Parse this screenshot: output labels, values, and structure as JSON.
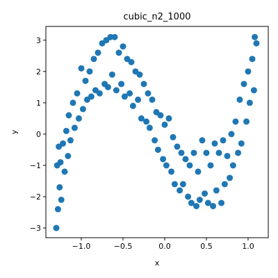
{
  "chart_data": {
    "type": "scatter",
    "title": "cubic_n2_1000",
    "xlabel": "x",
    "ylabel": "y",
    "color": "#1f77b4",
    "x": [
      -1.3,
      -1.29,
      -1.28,
      -1.27,
      -1.26,
      -1.25,
      -1.24,
      -1.22,
      -1.2,
      -1.18,
      -1.16,
      -1.15,
      -1.13,
      -1.1,
      -1.08,
      -1.05,
      -1.03,
      -1.0,
      -0.98,
      -0.95,
      -0.93,
      -0.9,
      -0.88,
      -0.85,
      -0.83,
      -0.8,
      -0.78,
      -0.75,
      -0.72,
      -0.7,
      -0.68,
      -0.65,
      -0.63,
      -0.6,
      -0.58,
      -0.55,
      -0.52,
      -0.5,
      -0.48,
      -0.45,
      -0.42,
      -0.4,
      -0.38,
      -0.35,
      -0.32,
      -0.3,
      -0.28,
      -0.25,
      -0.22,
      -0.2,
      -0.18,
      -0.15,
      -0.12,
      -0.1,
      -0.08,
      -0.05,
      -0.02,
      0.0,
      0.02,
      0.05,
      0.08,
      0.1,
      0.12,
      0.15,
      0.18,
      0.2,
      0.22,
      0.25,
      0.28,
      0.3,
      0.32,
      0.35,
      0.38,
      0.4,
      0.42,
      0.45,
      0.48,
      0.5,
      0.52,
      0.55,
      0.58,
      0.6,
      0.62,
      0.65,
      0.68,
      0.7,
      0.72,
      0.75,
      0.78,
      0.8,
      0.82,
      0.85,
      0.88,
      0.9,
      0.92,
      0.95,
      0.98,
      1.0,
      1.02,
      1.05,
      1.07,
      1.08,
      1.1
    ],
    "y": [
      -3.0,
      -1.0,
      -2.4,
      -0.4,
      -1.7,
      -0.9,
      -2.1,
      -0.3,
      -1.2,
      0.1,
      -0.7,
      0.6,
      -0.2,
      1.0,
      0.2,
      1.3,
      0.5,
      2.1,
      0.8,
      1.7,
      1.1,
      2.0,
      1.2,
      2.4,
      1.4,
      2.6,
      1.3,
      2.9,
      1.6,
      3.0,
      1.5,
      3.1,
      1.9,
      3.1,
      1.4,
      2.6,
      1.6,
      2.8,
      1.2,
      2.4,
      1.3,
      2.3,
      0.9,
      2.0,
      1.1,
      1.9,
      0.5,
      1.6,
      0.4,
      1.3,
      0.2,
      1.1,
      -0.2,
      0.7,
      -0.5,
      0.6,
      -0.8,
      0.3,
      -1.0,
      0.5,
      -1.2,
      -0.1,
      -1.6,
      -0.4,
      -1.8,
      -0.6,
      -1.6,
      -0.8,
      -2.0,
      -1.0,
      -2.2,
      -0.6,
      -2.3,
      -1.2,
      -2.1,
      -0.2,
      -1.9,
      -0.6,
      -2.2,
      -1.0,
      -2.3,
      -0.3,
      -1.8,
      -0.6,
      -2.2,
      -0.2,
      -1.6,
      -0.7,
      -1.4,
      0.0,
      -1.0,
      0.4,
      -0.6,
      1.1,
      -0.3,
      1.6,
      0.4,
      2.0,
      1.0,
      2.4,
      1.4,
      3.1,
      2.9
    ],
    "xlim": [
      -1.425,
      1.242
    ],
    "ylim": [
      -3.31,
      3.44
    ],
    "xticks": [
      {
        "value": -1.0,
        "label": "−1.0"
      },
      {
        "value": -0.5,
        "label": "−0.5"
      },
      {
        "value": 0.0,
        "label": "0.0"
      },
      {
        "value": 0.5,
        "label": "0.5"
      },
      {
        "value": 1.0,
        "label": "1.0"
      }
    ],
    "yticks": [
      {
        "value": -3,
        "label": "−3"
      },
      {
        "value": -2,
        "label": "−2"
      },
      {
        "value": -1,
        "label": "−1"
      },
      0,
      1,
      2,
      3
    ]
  }
}
